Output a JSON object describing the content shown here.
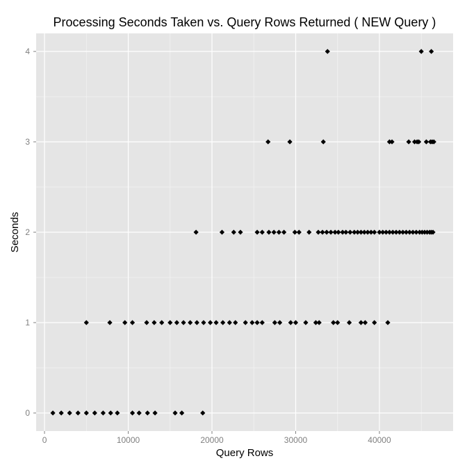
{
  "chart_data": {
    "type": "scatter",
    "title": "Processing Seconds Taken vs. Query Rows Returned ( NEW Query )",
    "xlabel": "Query Rows",
    "ylabel": "Seconds",
    "xlim": [
      -1000,
      48800
    ],
    "ylim": [
      -0.2,
      4.2
    ],
    "x_ticks": [
      0,
      10000,
      20000,
      30000,
      40000
    ],
    "x_tick_labels": [
      "0",
      "10000",
      "20000",
      "30000",
      "40000"
    ],
    "y_ticks": [
      0,
      1,
      2,
      3,
      4
    ],
    "y_tick_labels": [
      "0",
      "1",
      "2",
      "3",
      "4"
    ],
    "grid": true,
    "legend": "none",
    "colors": {
      "panel_background": "#e5e5e5",
      "grid_major": "#ffffff",
      "grid_minor": "#f2f2f2",
      "point": "#000000",
      "tick_label": "#7f7f7f",
      "title": "#000000"
    },
    "marker": "diamond",
    "points": [
      {
        "x": 1000,
        "y": 0
      },
      {
        "x": 2000,
        "y": 0
      },
      {
        "x": 3000,
        "y": 0
      },
      {
        "x": 4000,
        "y": 0
      },
      {
        "x": 5000,
        "y": 0
      },
      {
        "x": 6000,
        "y": 0
      },
      {
        "x": 7000,
        "y": 0
      },
      {
        "x": 7900,
        "y": 0
      },
      {
        "x": 8700,
        "y": 0
      },
      {
        "x": 10500,
        "y": 0
      },
      {
        "x": 11300,
        "y": 0
      },
      {
        "x": 12300,
        "y": 0
      },
      {
        "x": 13200,
        "y": 0
      },
      {
        "x": 15600,
        "y": 0
      },
      {
        "x": 16400,
        "y": 0
      },
      {
        "x": 18900,
        "y": 0
      },
      {
        "x": 5000,
        "y": 1
      },
      {
        "x": 7800,
        "y": 1
      },
      {
        "x": 9600,
        "y": 1
      },
      {
        "x": 10500,
        "y": 1
      },
      {
        "x": 12200,
        "y": 1
      },
      {
        "x": 13100,
        "y": 1
      },
      {
        "x": 14000,
        "y": 1
      },
      {
        "x": 15000,
        "y": 1
      },
      {
        "x": 15800,
        "y": 1
      },
      {
        "x": 16600,
        "y": 1
      },
      {
        "x": 17400,
        "y": 1
      },
      {
        "x": 18200,
        "y": 1
      },
      {
        "x": 19000,
        "y": 1
      },
      {
        "x": 19800,
        "y": 1
      },
      {
        "x": 20500,
        "y": 1
      },
      {
        "x": 21300,
        "y": 1
      },
      {
        "x": 22100,
        "y": 1
      },
      {
        "x": 22800,
        "y": 1
      },
      {
        "x": 24000,
        "y": 1
      },
      {
        "x": 24800,
        "y": 1
      },
      {
        "x": 25400,
        "y": 1
      },
      {
        "x": 26000,
        "y": 1
      },
      {
        "x": 27500,
        "y": 1
      },
      {
        "x": 28100,
        "y": 1
      },
      {
        "x": 29400,
        "y": 1
      },
      {
        "x": 30000,
        "y": 1
      },
      {
        "x": 31200,
        "y": 1
      },
      {
        "x": 32400,
        "y": 1
      },
      {
        "x": 32800,
        "y": 1
      },
      {
        "x": 34500,
        "y": 1
      },
      {
        "x": 35000,
        "y": 1
      },
      {
        "x": 36400,
        "y": 1
      },
      {
        "x": 37800,
        "y": 1
      },
      {
        "x": 38300,
        "y": 1
      },
      {
        "x": 39400,
        "y": 1
      },
      {
        "x": 41000,
        "y": 1
      },
      {
        "x": 18100,
        "y": 2
      },
      {
        "x": 21200,
        "y": 2
      },
      {
        "x": 22600,
        "y": 2
      },
      {
        "x": 23400,
        "y": 2
      },
      {
        "x": 25400,
        "y": 2
      },
      {
        "x": 26000,
        "y": 2
      },
      {
        "x": 26800,
        "y": 2
      },
      {
        "x": 27400,
        "y": 2
      },
      {
        "x": 28000,
        "y": 2
      },
      {
        "x": 28600,
        "y": 2
      },
      {
        "x": 29900,
        "y": 2
      },
      {
        "x": 30400,
        "y": 2
      },
      {
        "x": 31600,
        "y": 2
      },
      {
        "x": 32700,
        "y": 2
      },
      {
        "x": 33200,
        "y": 2
      },
      {
        "x": 33700,
        "y": 2
      },
      {
        "x": 34200,
        "y": 2
      },
      {
        "x": 34700,
        "y": 2
      },
      {
        "x": 35100,
        "y": 2
      },
      {
        "x": 35600,
        "y": 2
      },
      {
        "x": 36000,
        "y": 2
      },
      {
        "x": 36500,
        "y": 2
      },
      {
        "x": 37000,
        "y": 2
      },
      {
        "x": 37400,
        "y": 2
      },
      {
        "x": 37800,
        "y": 2
      },
      {
        "x": 38200,
        "y": 2
      },
      {
        "x": 38600,
        "y": 2
      },
      {
        "x": 39000,
        "y": 2
      },
      {
        "x": 39400,
        "y": 2
      },
      {
        "x": 40000,
        "y": 2
      },
      {
        "x": 40400,
        "y": 2
      },
      {
        "x": 40800,
        "y": 2
      },
      {
        "x": 41200,
        "y": 2
      },
      {
        "x": 41600,
        "y": 2
      },
      {
        "x": 42000,
        "y": 2
      },
      {
        "x": 42400,
        "y": 2
      },
      {
        "x": 42800,
        "y": 2
      },
      {
        "x": 43200,
        "y": 2
      },
      {
        "x": 43600,
        "y": 2
      },
      {
        "x": 44000,
        "y": 2
      },
      {
        "x": 44400,
        "y": 2
      },
      {
        "x": 44800,
        "y": 2
      },
      {
        "x": 45100,
        "y": 2
      },
      {
        "x": 45400,
        "y": 2
      },
      {
        "x": 45700,
        "y": 2
      },
      {
        "x": 46000,
        "y": 2
      },
      {
        "x": 46200,
        "y": 2
      },
      {
        "x": 46400,
        "y": 2
      },
      {
        "x": 26700,
        "y": 3
      },
      {
        "x": 29300,
        "y": 3
      },
      {
        "x": 33300,
        "y": 3
      },
      {
        "x": 41200,
        "y": 3
      },
      {
        "x": 41500,
        "y": 3
      },
      {
        "x": 43500,
        "y": 3
      },
      {
        "x": 44200,
        "y": 3
      },
      {
        "x": 44500,
        "y": 3
      },
      {
        "x": 44700,
        "y": 3
      },
      {
        "x": 45600,
        "y": 3
      },
      {
        "x": 46100,
        "y": 3
      },
      {
        "x": 46300,
        "y": 3
      },
      {
        "x": 46500,
        "y": 3
      },
      {
        "x": 33800,
        "y": 4
      },
      {
        "x": 45000,
        "y": 4
      },
      {
        "x": 46200,
        "y": 4
      }
    ]
  }
}
